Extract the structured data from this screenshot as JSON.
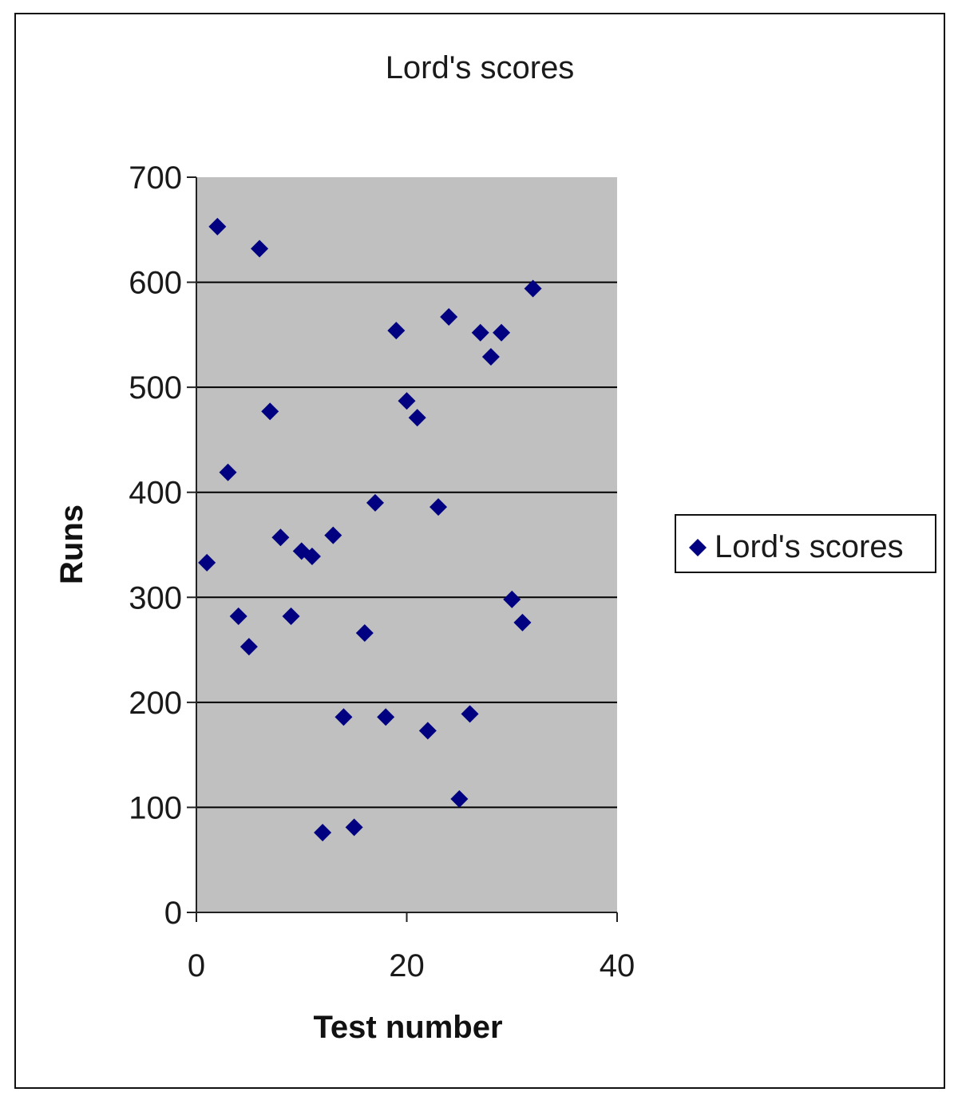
{
  "chart_data": {
    "type": "scatter",
    "title": "Lord's scores",
    "xlabel": "Test number",
    "ylabel": "Runs",
    "xlim": [
      0,
      40
    ],
    "ylim": [
      0,
      700
    ],
    "x_ticks": [
      0,
      20,
      40
    ],
    "y_ticks": [
      0,
      100,
      200,
      300,
      400,
      500,
      600,
      700
    ],
    "x_tick_labels": [
      "0",
      "20",
      "40"
    ],
    "y_tick_labels": [
      "0",
      "100",
      "200",
      "300",
      "400",
      "500",
      "600",
      "700"
    ],
    "grid": "horizontal major gridlines",
    "plot_background": "#c0c0c0",
    "legend_position": "right",
    "series": [
      {
        "name": "Lord's scores",
        "color": "#000080",
        "marker": "diamond",
        "x": [
          1,
          2,
          3,
          4,
          5,
          6,
          7,
          8,
          9,
          10,
          11,
          12,
          13,
          14,
          15,
          16,
          17,
          18,
          19,
          20,
          21,
          22,
          23,
          24,
          25,
          26,
          27,
          28,
          29,
          30,
          31,
          32
        ],
        "y": [
          333,
          653,
          419,
          282,
          253,
          632,
          477,
          357,
          282,
          344,
          339,
          76,
          359,
          186,
          81,
          266,
          390,
          186,
          554,
          487,
          471,
          173,
          386,
          567,
          108,
          189,
          552,
          529,
          552,
          298,
          276,
          594
        ]
      }
    ]
  }
}
